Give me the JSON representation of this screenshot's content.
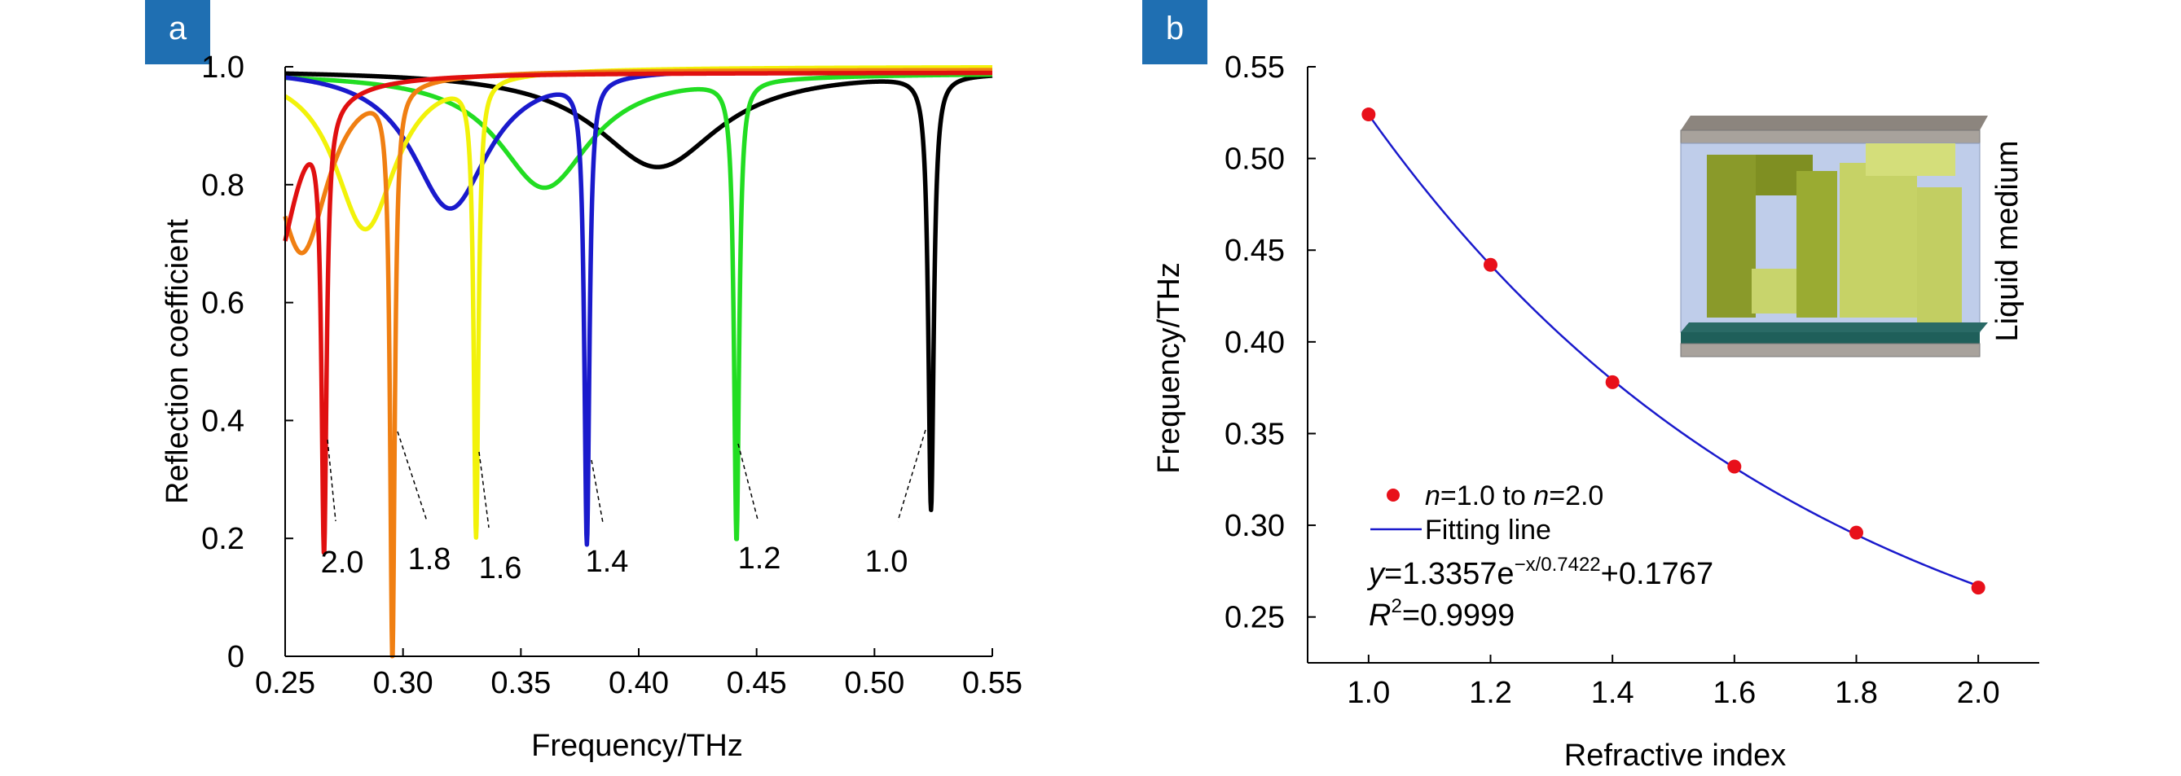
{
  "chart_data": [
    {
      "panel": "a",
      "type": "line",
      "xlabel": "Frequency/THz",
      "ylabel": "Reflection coefficient",
      "xlim": [
        0.25,
        0.55
      ],
      "ylim": [
        0,
        1.0
      ],
      "xticks": [
        "0.25",
        "0.30",
        "0.35",
        "0.40",
        "0.45",
        "0.50",
        "0.55"
      ],
      "yticks": [
        "0",
        "0.2",
        "0.4",
        "0.6",
        "0.8",
        "1.0"
      ],
      "series": [
        {
          "name": "1.0",
          "color": "#000000",
          "resonances": [
            {
              "f": 0.524,
              "depth": 0.735,
              "width": 0.0014
            },
            {
              "f": 0.408,
              "depth": 0.165,
              "width": 0.032
            }
          ],
          "background": 0.995
        },
        {
          "name": "1.2",
          "color": "#22dd22",
          "resonances": [
            {
              "f": 0.4415,
              "depth": 0.78,
              "width": 0.0013
            },
            {
              "f": 0.36,
              "depth": 0.195,
              "width": 0.024
            }
          ],
          "background": 0.99
        },
        {
          "name": "1.4",
          "color": "#1a1acc",
          "resonances": [
            {
              "f": 0.378,
              "depth": 0.785,
              "width": 0.0013
            },
            {
              "f": 0.32,
              "depth": 0.24,
              "width": 0.02
            }
          ],
          "background": 1.0
        },
        {
          "name": "1.6",
          "color": "#f2f20a",
          "resonances": [
            {
              "f": 0.331,
              "depth": 0.77,
              "width": 0.0012
            },
            {
              "f": 0.284,
              "depth": 0.275,
              "width": 0.016
            }
          ],
          "background": 1.0
        },
        {
          "name": "1.8",
          "color": "#f07f12",
          "resonances": [
            {
              "f": 0.2955,
              "depth": 0.965,
              "width": 0.0012
            },
            {
              "f": 0.257,
              "depth": 0.31,
              "width": 0.014
            }
          ],
          "background": 0.995
        },
        {
          "name": "2.0",
          "color": "#e01010",
          "resonances": [
            {
              "f": 0.2665,
              "depth": 0.74,
              "width": 0.0013
            },
            {
              "f": 0.2445,
              "depth": 0.34,
              "width": 0.012
            }
          ],
          "background": 0.99
        }
      ]
    },
    {
      "panel": "b",
      "type": "scatter",
      "xlabel": "Refractive index",
      "ylabel": "Frequency/THz",
      "xlim": [
        0.9,
        2.1
      ],
      "ylim": [
        0.225,
        0.55
      ],
      "xticks": [
        "1.0",
        "1.2",
        "1.4",
        "1.6",
        "1.8",
        "2.0"
      ],
      "yticks": [
        "0.25",
        "0.30",
        "0.35",
        "0.40",
        "0.45",
        "0.50",
        "0.55"
      ],
      "points": {
        "x": [
          1.0,
          1.2,
          1.4,
          1.6,
          1.8,
          2.0
        ],
        "y": [
          0.524,
          0.442,
          0.378,
          0.332,
          0.296,
          0.266
        ]
      },
      "fit": {
        "a": 1.3357,
        "t": 0.7422,
        "c": 0.1767
      },
      "legend": {
        "points": "=1.0 to ",
        "points_n1": "n",
        "points_n2": "n",
        "points_tail": "=2.0",
        "line": "Fitting line"
      },
      "equation": {
        "y": "y",
        "body": "=1.3357e",
        "exp": "−x/0.7422",
        "tail": "+0.1767"
      },
      "r2": {
        "R": "R",
        "sup": "2",
        "tail": "=0.9999"
      },
      "inset_label": "Liquid medium",
      "point_color": "#e8101a",
      "line_color": "#1a1acc"
    }
  ],
  "panels": {
    "a": "a",
    "b": "b"
  },
  "badge_color": "#1f6fb2"
}
